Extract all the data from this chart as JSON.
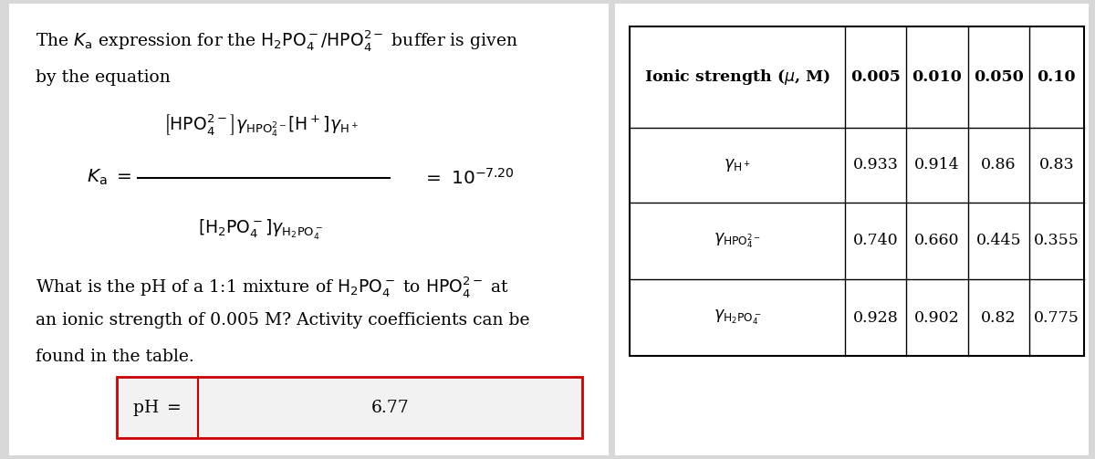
{
  "bg_color": "#d8d8d8",
  "left_bg": "#ffffff",
  "right_bg": "#ffffff",
  "table_header_cols": [
    "0.005",
    "0.010",
    "0.050",
    "0.10"
  ],
  "table_row1_vals": [
    "0.933",
    "0.914",
    "0.86",
    "0.83"
  ],
  "table_row2_vals": [
    "0.740",
    "0.660",
    "0.445",
    "0.355"
  ],
  "table_row3_vals": [
    "0.928",
    "0.902",
    "0.82",
    "0.775"
  ],
  "ph_value": "6.77",
  "answer_box_color": "#cc0000",
  "text_color": "#1a1a1a"
}
